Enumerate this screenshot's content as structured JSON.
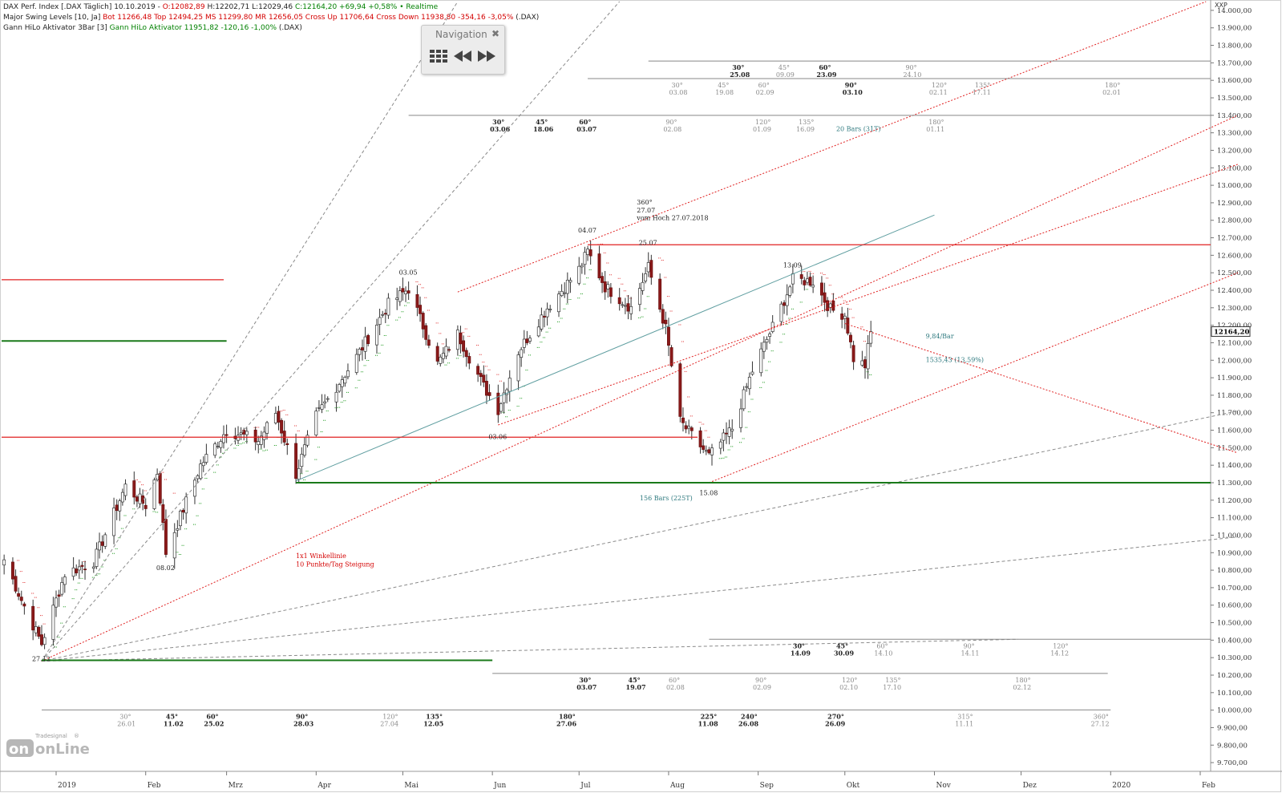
{
  "header": {
    "line1": [
      {
        "text": "DAX Perf. Index [.DAX Täglich] 10.10.2019 - ",
        "color": "#222222"
      },
      {
        "text": "O:12082,89",
        "color": "#d40000"
      },
      {
        "text": " H:12202,71 L:12029,46 ",
        "color": "#222222"
      },
      {
        "text": "C:12164,20 +69,94 +0,58% • Realtime",
        "color": "#008000"
      }
    ],
    "line2": [
      {
        "text": "Major Swing Levels [10, Ja] ",
        "color": "#222222"
      },
      {
        "text": "Bot 11266,48 Top 12494,25 MS 11299,80 MR 12656,05 Cross Up 11706,64 Cross Down 11938,80 -354,16 -3,05%",
        "color": "#d40000"
      },
      {
        "text": " (.DAX)",
        "color": "#222222"
      }
    ],
    "line3": [
      {
        "text": "Gann HiLo Aktivator 3Bar [3] ",
        "color": "#222222"
      },
      {
        "text": "Gann HiLo Aktivator 11951,82 -120,16 -1,00%",
        "color": "#008000"
      },
      {
        "text": " (.DAX)",
        "color": "#222222"
      }
    ]
  },
  "navigation": {
    "title": "Navigation",
    "close_icon": "close-icon",
    "buttons": [
      "grid-menu-icon",
      "rewind-icon",
      "fast-forward-icon"
    ]
  },
  "logo": {
    "brand": "Tradesignal",
    "reg": "®",
    "product": "onLine"
  },
  "chart_data": {
    "type": "candlestick",
    "symbol": "XXP",
    "ylim": [
      9650,
      14050
    ],
    "y_ticks": [
      9700,
      9800,
      9900,
      10000,
      10100,
      10200,
      10300,
      10400,
      10500,
      10600,
      10700,
      10800,
      10900,
      11000,
      11100,
      11200,
      11300,
      11400,
      11500,
      11600,
      11700,
      11800,
      11900,
      12000,
      12100,
      12200,
      12300,
      12400,
      12500,
      12600,
      12700,
      12800,
      12900,
      13000,
      13100,
      13200,
      13300,
      13400,
      13500,
      13600,
      13700,
      13800,
      13900,
      14000
    ],
    "y_tick_labels": [
      "9.700,00",
      "9.800,00",
      "9.900,00",
      "10.000,00",
      "10.100,00",
      "10.200,00",
      "10.300,00",
      "10.400,00",
      "10.500,00",
      "10.600,00",
      "10.700,00",
      "10.800,00",
      "10.900,00",
      "11.000,00",
      "11.100,00",
      "11.200,00",
      "11.300,00",
      "11.400,00",
      "11.500,00",
      "11.600,00",
      "11.700,00",
      "11.800,00",
      "11.900,00",
      "12.000,00",
      "12.100,00",
      "12.200,00",
      "12.300,00",
      "12.400,00",
      "12.500,00",
      "12.600,00",
      "12.700,00",
      "12.800,00",
      "12.900,00",
      "13.000,00",
      "13.100,00",
      "13.200,00",
      "13.300,00",
      "13.400,00",
      "13.500,00",
      "13.600,00",
      "13.700,00",
      "13.800,00",
      "13.900,00",
      "14.000,00"
    ],
    "x_labels": [
      {
        "label": "2019",
        "date": "2019-01-01"
      },
      {
        "label": "Feb",
        "date": "2019-02-01"
      },
      {
        "label": "Mrz",
        "date": "2019-03-01"
      },
      {
        "label": "Apr",
        "date": "2019-04-01"
      },
      {
        "label": "Mai",
        "date": "2019-05-01"
      },
      {
        "label": "Jun",
        "date": "2019-06-01"
      },
      {
        "label": "Jul",
        "date": "2019-07-01"
      },
      {
        "label": "Aug",
        "date": "2019-08-01"
      },
      {
        "label": "Sep",
        "date": "2019-09-01"
      },
      {
        "label": "Okt",
        "date": "2019-10-01"
      },
      {
        "label": "Nov",
        "date": "2019-11-01"
      },
      {
        "label": "Dez",
        "date": "2019-12-01"
      },
      {
        "label": "2020",
        "date": "2020-01-01"
      },
      {
        "label": "Feb",
        "date": "2020-02-01"
      }
    ],
    "last_price_label": "12164,20",
    "last_price": 12164.2,
    "anchors": [
      {
        "date": "2018-12-14",
        "close": 10860
      },
      {
        "date": "2018-12-20",
        "close": 10630
      },
      {
        "date": "2018-12-27",
        "close": 10380
      },
      {
        "date": "2019-01-04",
        "close": 10780
      },
      {
        "date": "2019-01-14",
        "close": 10850
      },
      {
        "date": "2019-01-25",
        "close": 11280
      },
      {
        "date": "2019-02-01",
        "close": 11170
      },
      {
        "date": "2019-02-05",
        "close": 11360
      },
      {
        "date": "2019-02-08",
        "close": 10900
      },
      {
        "date": "2019-02-20",
        "close": 11400
      },
      {
        "date": "2019-03-01",
        "close": 11600
      },
      {
        "date": "2019-03-12",
        "close": 11540
      },
      {
        "date": "2019-03-18",
        "close": 11700
      },
      {
        "date": "2019-03-25",
        "close": 11350
      },
      {
        "date": "2019-04-01",
        "close": 11680
      },
      {
        "date": "2019-04-15",
        "close": 12020
      },
      {
        "date": "2019-04-26",
        "close": 12320
      },
      {
        "date": "2019-05-03",
        "close": 12410
      },
      {
        "date": "2019-05-13",
        "close": 11980
      },
      {
        "date": "2019-05-20",
        "close": 12150
      },
      {
        "date": "2019-05-29",
        "close": 11850
      },
      {
        "date": "2019-06-03",
        "close": 11720
      },
      {
        "date": "2019-06-10",
        "close": 12050
      },
      {
        "date": "2019-06-20",
        "close": 12300
      },
      {
        "date": "2019-07-01",
        "close": 12520
      },
      {
        "date": "2019-07-04",
        "close": 12620
      },
      {
        "date": "2019-07-10",
        "close": 12420
      },
      {
        "date": "2019-07-19",
        "close": 12300
      },
      {
        "date": "2019-07-25",
        "close": 12530
      },
      {
        "date": "2019-07-31",
        "close": 12180
      },
      {
        "date": "2019-08-05",
        "close": 11650
      },
      {
        "date": "2019-08-15",
        "close": 11450
      },
      {
        "date": "2019-08-23",
        "close": 11610
      },
      {
        "date": "2019-08-30",
        "close": 11940
      },
      {
        "date": "2019-09-06",
        "close": 12190
      },
      {
        "date": "2019-09-13",
        "close": 12460
      },
      {
        "date": "2019-09-20",
        "close": 12450
      },
      {
        "date": "2019-09-26",
        "close": 12290
      },
      {
        "date": "2019-10-01",
        "close": 12260
      },
      {
        "date": "2019-10-04",
        "close": 12010
      },
      {
        "date": "2019-10-08",
        "close": 11970
      },
      {
        "date": "2019-10-10",
        "close": 12164.2
      }
    ],
    "swing_labels": [
      {
        "text": "27.12",
        "date": "2018-12-27",
        "price": 10280
      },
      {
        "text": "08.02",
        "date": "2019-02-08",
        "price": 10800
      },
      {
        "text": "03.05",
        "date": "2019-05-03",
        "price": 12490
      },
      {
        "text": "03.06",
        "date": "2019-06-03",
        "price": 11550
      },
      {
        "text": "04.07",
        "date": "2019-07-04",
        "price": 12730
      },
      {
        "text": "25.07",
        "date": "2019-07-25",
        "price": 12660
      },
      {
        "text": "15.08",
        "date": "2019-08-15",
        "price": 11230
      },
      {
        "text": "13.09",
        "date": "2019-09-13",
        "price": 12530
      }
    ],
    "support_resistance": [
      {
        "kind": "resistance",
        "level": 12460,
        "from": "2018-12-01",
        "to": "2019-02-28"
      },
      {
        "kind": "support",
        "level": 12110,
        "from": "2018-12-01",
        "to": "2019-03-01"
      },
      {
        "kind": "resistance",
        "level": 11560,
        "from": "2018-12-01",
        "to": "2019-08-11"
      },
      {
        "kind": "resistance",
        "level": 12660,
        "from": "2019-07-04",
        "to": "2020-02-14"
      },
      {
        "kind": "support",
        "level": 11300,
        "from": "2019-03-25",
        "to": "2020-02-14"
      },
      {
        "kind": "support",
        "level": 10285,
        "from": "2018-12-27",
        "to": "2019-06-01"
      }
    ],
    "annotations": [
      {
        "text": "1x1 Winkellinie",
        "color": "#d40000",
        "date": "2019-03-25",
        "price": 10870
      },
      {
        "text": "10 Punkte/Tag Steigung",
        "color": "#d40000",
        "date": "2019-03-25",
        "price": 10820
      },
      {
        "text": "360°",
        "color": "#222222",
        "date": "2019-07-21",
        "price": 12890
      },
      {
        "text": "27.07",
        "color": "#222222",
        "date": "2019-07-21",
        "price": 12845
      },
      {
        "text": "vom Hoch 27.07.2018",
        "color": "#222222",
        "date": "2019-07-21",
        "price": 12800
      },
      {
        "text": "9,84/Bar",
        "color": "#2f7a7f",
        "date": "2019-10-29",
        "price": 12125
      },
      {
        "text": "1535,43 (13,59%)",
        "color": "#2f7a7f",
        "date": "2019-10-29",
        "price": 11990
      },
      {
        "text": "156 Bars (225T)",
        "color": "#2f7a7f",
        "date": "2019-07-22",
        "price": 11200
      },
      {
        "text": "20 Bars (31T)",
        "color": "#2f7a7f",
        "date": "2019-09-28",
        "price": 13310
      }
    ],
    "gann_time_rows": [
      {
        "level": 10001,
        "from": "2018-12-27",
        "to": "2020-01-01",
        "marks": [
          {
            "deg": "30°",
            "date": "26.01",
            "at": "2019-01-23",
            "muted": true
          },
          {
            "deg": "45°",
            "date": "11.02",
            "at": "2019-02-08",
            "muted": false
          },
          {
            "deg": "60°",
            "date": "25.02",
            "at": "2019-02-22",
            "muted": false
          },
          {
            "deg": "90°",
            "date": "28.03",
            "at": "2019-03-25",
            "muted": false
          },
          {
            "deg": "120°",
            "date": "27.04",
            "at": "2019-04-24",
            "muted": true
          },
          {
            "deg": "135°",
            "date": "12.05",
            "at": "2019-05-09",
            "muted": false
          },
          {
            "deg": "180°",
            "date": "27.06",
            "at": "2019-06-24",
            "muted": false
          },
          {
            "deg": "225°",
            "date": "11.08",
            "at": "2019-08-12",
            "muted": false
          },
          {
            "deg": "240°",
            "date": "26.08",
            "at": "2019-08-26",
            "muted": false
          },
          {
            "deg": "270°",
            "date": "26.09",
            "at": "2019-09-25",
            "muted": false
          },
          {
            "deg": "315°",
            "date": "11.11",
            "at": "2019-11-09",
            "muted": true
          },
          {
            "deg": "360°",
            "date": "27.12",
            "at": "2019-12-26",
            "muted": true
          }
        ]
      },
      {
        "level": 10210,
        "from": "2019-06-01",
        "to": "2019-12-31",
        "marks": [
          {
            "deg": "30°",
            "date": "03.07",
            "at": "2019-07-01",
            "muted": false
          },
          {
            "deg": "45°",
            "date": "19.07",
            "at": "2019-07-18",
            "muted": false
          },
          {
            "deg": "60°",
            "date": "02.08",
            "at": "2019-08-01",
            "muted": true
          },
          {
            "deg": "90°",
            "date": "02.09",
            "at": "2019-08-31",
            "muted": true
          },
          {
            "deg": "120°",
            "date": "02.10",
            "at": "2019-09-30",
            "muted": true
          },
          {
            "deg": "135°",
            "date": "17.10",
            "at": "2019-10-15",
            "muted": true
          },
          {
            "deg": "180°",
            "date": "02.12",
            "at": "2019-11-29",
            "muted": true
          }
        ]
      },
      {
        "level": 10405,
        "from": "2019-08-15",
        "to": "2020-02-14",
        "marks": [
          {
            "deg": "30°",
            "date": "14.09",
            "at": "2019-09-13",
            "muted": false
          },
          {
            "deg": "45°",
            "date": "30.09",
            "at": "2019-09-28",
            "muted": false
          },
          {
            "deg": "60°",
            "date": "14.10",
            "at": "2019-10-12",
            "muted": true
          },
          {
            "deg": "90°",
            "date": "14.11",
            "at": "2019-11-11",
            "muted": true
          },
          {
            "deg": "120°",
            "date": "14.12",
            "at": "2019-12-12",
            "muted": true
          }
        ]
      },
      {
        "level": 13400,
        "from": "2019-05-03",
        "to": "2020-02-14",
        "marks": [
          {
            "deg": "30°",
            "date": "03.06",
            "at": "2019-06-01",
            "muted": false
          },
          {
            "deg": "45°",
            "date": "18.06",
            "at": "2019-06-16",
            "muted": false
          },
          {
            "deg": "60°",
            "date": "03.07",
            "at": "2019-07-01",
            "muted": false
          },
          {
            "deg": "90°",
            "date": "02.08",
            "at": "2019-07-31",
            "muted": true
          },
          {
            "deg": "120°",
            "date": "01.09",
            "at": "2019-08-31",
            "muted": true
          },
          {
            "deg": "135°",
            "date": "16.09",
            "at": "2019-09-15",
            "muted": true
          },
          {
            "deg": "180°",
            "date": "01.11",
            "at": "2019-10-30",
            "muted": true
          }
        ]
      },
      {
        "level": 13610,
        "from": "2019-07-04",
        "to": "2020-02-14",
        "marks": [
          {
            "deg": "30°",
            "date": "03.08",
            "at": "2019-08-02",
            "muted": true
          },
          {
            "deg": "45°",
            "date": "19.08",
            "at": "2019-08-18",
            "muted": true
          },
          {
            "deg": "60°",
            "date": "02.09",
            "at": "2019-09-01",
            "muted": true
          },
          {
            "deg": "90°",
            "date": "03.10",
            "at": "2019-10-01",
            "muted": false
          },
          {
            "deg": "120°",
            "date": "02.11",
            "at": "2019-10-31",
            "muted": true
          },
          {
            "deg": "135°",
            "date": "17.11",
            "at": "2019-11-15",
            "muted": true
          },
          {
            "deg": "180°",
            "date": "02.01",
            "at": "2019-12-30",
            "muted": true
          }
        ]
      },
      {
        "level": 13710,
        "from": "2019-07-25",
        "to": "2020-02-14",
        "marks": [
          {
            "deg": "30°",
            "date": "25.08",
            "at": "2019-08-23",
            "muted": false
          },
          {
            "deg": "45°",
            "date": "09.09",
            "at": "2019-09-08",
            "muted": true
          },
          {
            "deg": "60°",
            "date": "23.09",
            "at": "2019-09-22",
            "muted": false
          },
          {
            "deg": "90°",
            "date": "24.10",
            "at": "2019-10-22",
            "muted": true
          }
        ]
      }
    ],
    "trend_lines": [
      {
        "kind": "fan",
        "from": [
          "2018-12-27",
          10280
        ],
        "to": [
          "2019-05-20",
          14050
        ]
      },
      {
        "kind": "fan",
        "from": [
          "2018-12-27",
          10280
        ],
        "to": [
          "2019-07-15",
          14050
        ]
      },
      {
        "kind": "fan",
        "from": [
          "2018-12-27",
          10280
        ],
        "to": [
          "2020-02-14",
          11710
        ]
      },
      {
        "kind": "fan",
        "from": [
          "2018-12-27",
          10280
        ],
        "to": [
          "2020-02-14",
          10990
        ]
      },
      {
        "kind": "fan",
        "from": [
          "2018-12-27",
          10280
        ],
        "to": [
          "2019-11-30",
          10405
        ]
      },
      {
        "kind": "regression",
        "from": [
          "2019-03-25",
          11310
        ],
        "to": [
          "2019-11-01",
          12830
        ]
      },
      {
        "kind": "channel",
        "from": [
          "2018-12-27",
          10280
        ],
        "to": [
          "2020-02-14",
          13400
        ]
      },
      {
        "kind": "channel",
        "from": [
          "2019-06-03",
          11630
        ],
        "to": [
          "2020-02-14",
          13120
        ]
      },
      {
        "kind": "channel",
        "from": [
          "2019-08-15",
          11300
        ],
        "to": [
          "2020-02-14",
          12500
        ]
      },
      {
        "kind": "channel",
        "from": [
          "2019-05-20",
          12390
        ],
        "to": [
          "2020-02-03",
          14050
        ]
      },
      {
        "kind": "channel",
        "from": [
          "2019-10-01",
          12210
        ],
        "to": [
          "2020-02-14",
          11470
        ]
      }
    ]
  }
}
